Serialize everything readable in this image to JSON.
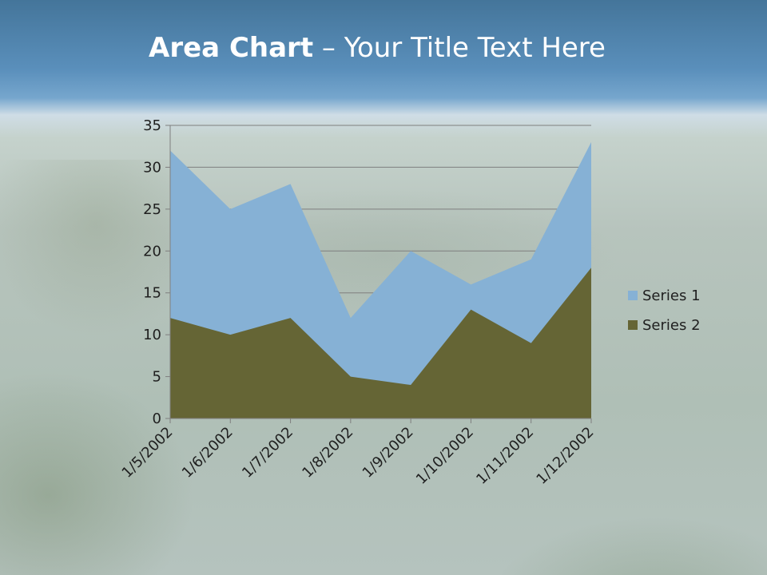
{
  "slide": {
    "title_bold": "Area Chart",
    "title_rest": " – Your Title Text Here"
  },
  "chart_data": {
    "type": "area",
    "categories": [
      "1/5/2002",
      "1/6/2002",
      "1/7/2002",
      "1/8/2002",
      "1/9/2002",
      "1/10/2002",
      "1/11/2002",
      "1/12/2002"
    ],
    "series": [
      {
        "name": "Series 1",
        "values": [
          32,
          25,
          28,
          12,
          20,
          16,
          19,
          33
        ],
        "color": "#86b1d5"
      },
      {
        "name": "Series 2",
        "values": [
          12,
          10,
          12,
          5,
          4,
          13,
          9,
          18
        ],
        "color": "#656535"
      }
    ],
    "ylim": [
      0,
      35
    ],
    "yticks": [
      0,
      5,
      10,
      15,
      20,
      25,
      30,
      35
    ],
    "grid": true,
    "legend_position": "right",
    "xlabel": "",
    "ylabel": ""
  }
}
